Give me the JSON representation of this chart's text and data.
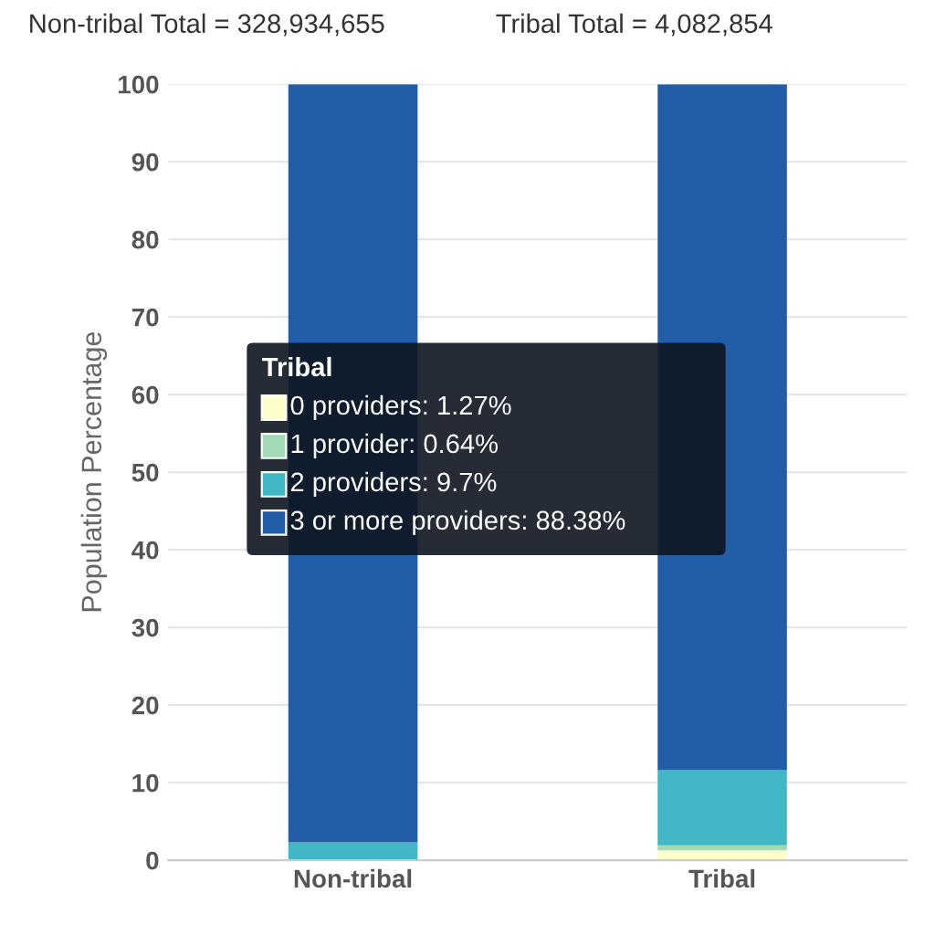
{
  "chart_data": {
    "type": "bar",
    "stacked": true,
    "annotations": [
      "Non-tribal Total = 328,934,655",
      "Tribal Total = 4,082,854",
      "Tribal",
      "0 providers: 1.27%",
      "1 provider: 0.64%",
      "2 providers: 9.7%",
      "3 or more providers: 88.38%"
    ],
    "ylabel": "Population Percentage",
    "categories": [
      "Non-tribal",
      "Tribal"
    ],
    "series": [
      {
        "color": "#ffffcc",
        "values": [
          0.0,
          1.27
        ]
      },
      {
        "color": "#a1dab4",
        "values": [
          0.0,
          0.64
        ]
      },
      {
        "color": "#41b6c4",
        "values": [
          2.3,
          9.7
        ]
      },
      {
        "color": "#225ea8",
        "values": [
          97.7,
          88.38
        ]
      }
    ],
    "ylim": [
      0,
      100
    ],
    "yticks": [
      0,
      10,
      20,
      30,
      40,
      50,
      60,
      70,
      80,
      90,
      100
    ],
    "grid": "y"
  }
}
